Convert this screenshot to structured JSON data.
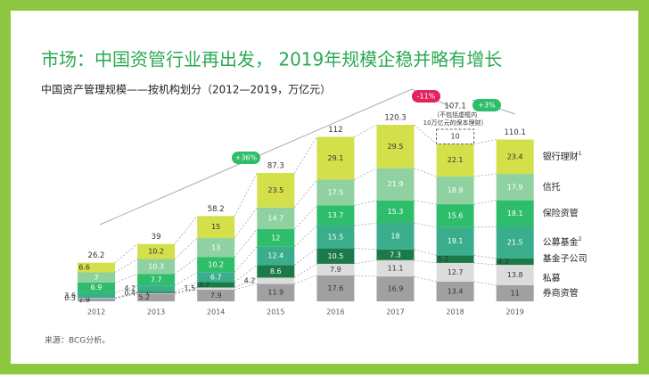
{
  "chart_data": {
    "type": "stacked_bar",
    "title": "市场：中国资管行业再出发， 2019年规模企稳并略有增长",
    "subtitle": "中国资产管理规模——按机构划分（2012—2019，万亿元）",
    "source": "来源：BCG分析。",
    "categories": [
      "2012",
      "2013",
      "2014",
      "2015",
      "2016",
      "2017",
      "2018",
      "2019"
    ],
    "series": [
      {
        "name": "券商资管",
        "color": "#a0a0a0",
        "values": [
          1.9,
          5.2,
          7.9,
          11.9,
          17.6,
          16.9,
          13.4,
          11.0
        ]
      },
      {
        "name": "私募",
        "color": "#dcdcdc",
        "values": [
          0.3,
          0.4,
          1.5,
          4.2,
          7.9,
          11.1,
          12.7,
          13.8
        ]
      },
      {
        "name": "基金子公司",
        "color": "#1b7a47",
        "values": [
          0.0,
          1.0,
          3.7,
          8.6,
          10.5,
          7.3,
          5.2,
          4.3
        ]
      },
      {
        "name": "公募基金",
        "note": "2",
        "color": "#3aae8c",
        "values": [
          3.6,
          4.2,
          6.7,
          12.4,
          15.5,
          18.0,
          19.1,
          21.5
        ]
      },
      {
        "name": "保险资管",
        "color": "#2dbd6b",
        "values": [
          6.9,
          7.7,
          10.2,
          12.0,
          13.7,
          15.3,
          15.6,
          18.1
        ]
      },
      {
        "name": "信托",
        "color": "#90d1a1",
        "values": [
          7.0,
          10.3,
          13.0,
          14.7,
          17.5,
          21.9,
          18.9,
          17.9
        ]
      },
      {
        "name": "银行理财",
        "note": "1",
        "color": "#d3e04a",
        "values": [
          6.6,
          10.2,
          15.0,
          23.5,
          29.1,
          29.5,
          22.1,
          23.4
        ]
      }
    ],
    "totals": [
      26.2,
      39.0,
      58.2,
      87.3,
      112.0,
      120.3,
      107.1,
      110.1
    ],
    "excluded": {
      "category": "2018",
      "value": 10,
      "note_lines": [
        "（不包括虚框内",
        "10万亿元的保本理财）"
      ]
    },
    "growth": [
      {
        "label": "+36%",
        "color": "#2dbd6b"
      },
      {
        "label": "-11%",
        "color": "#e0245e"
      },
      {
        "label": "+3%",
        "color": "#2dbd6b"
      }
    ]
  }
}
